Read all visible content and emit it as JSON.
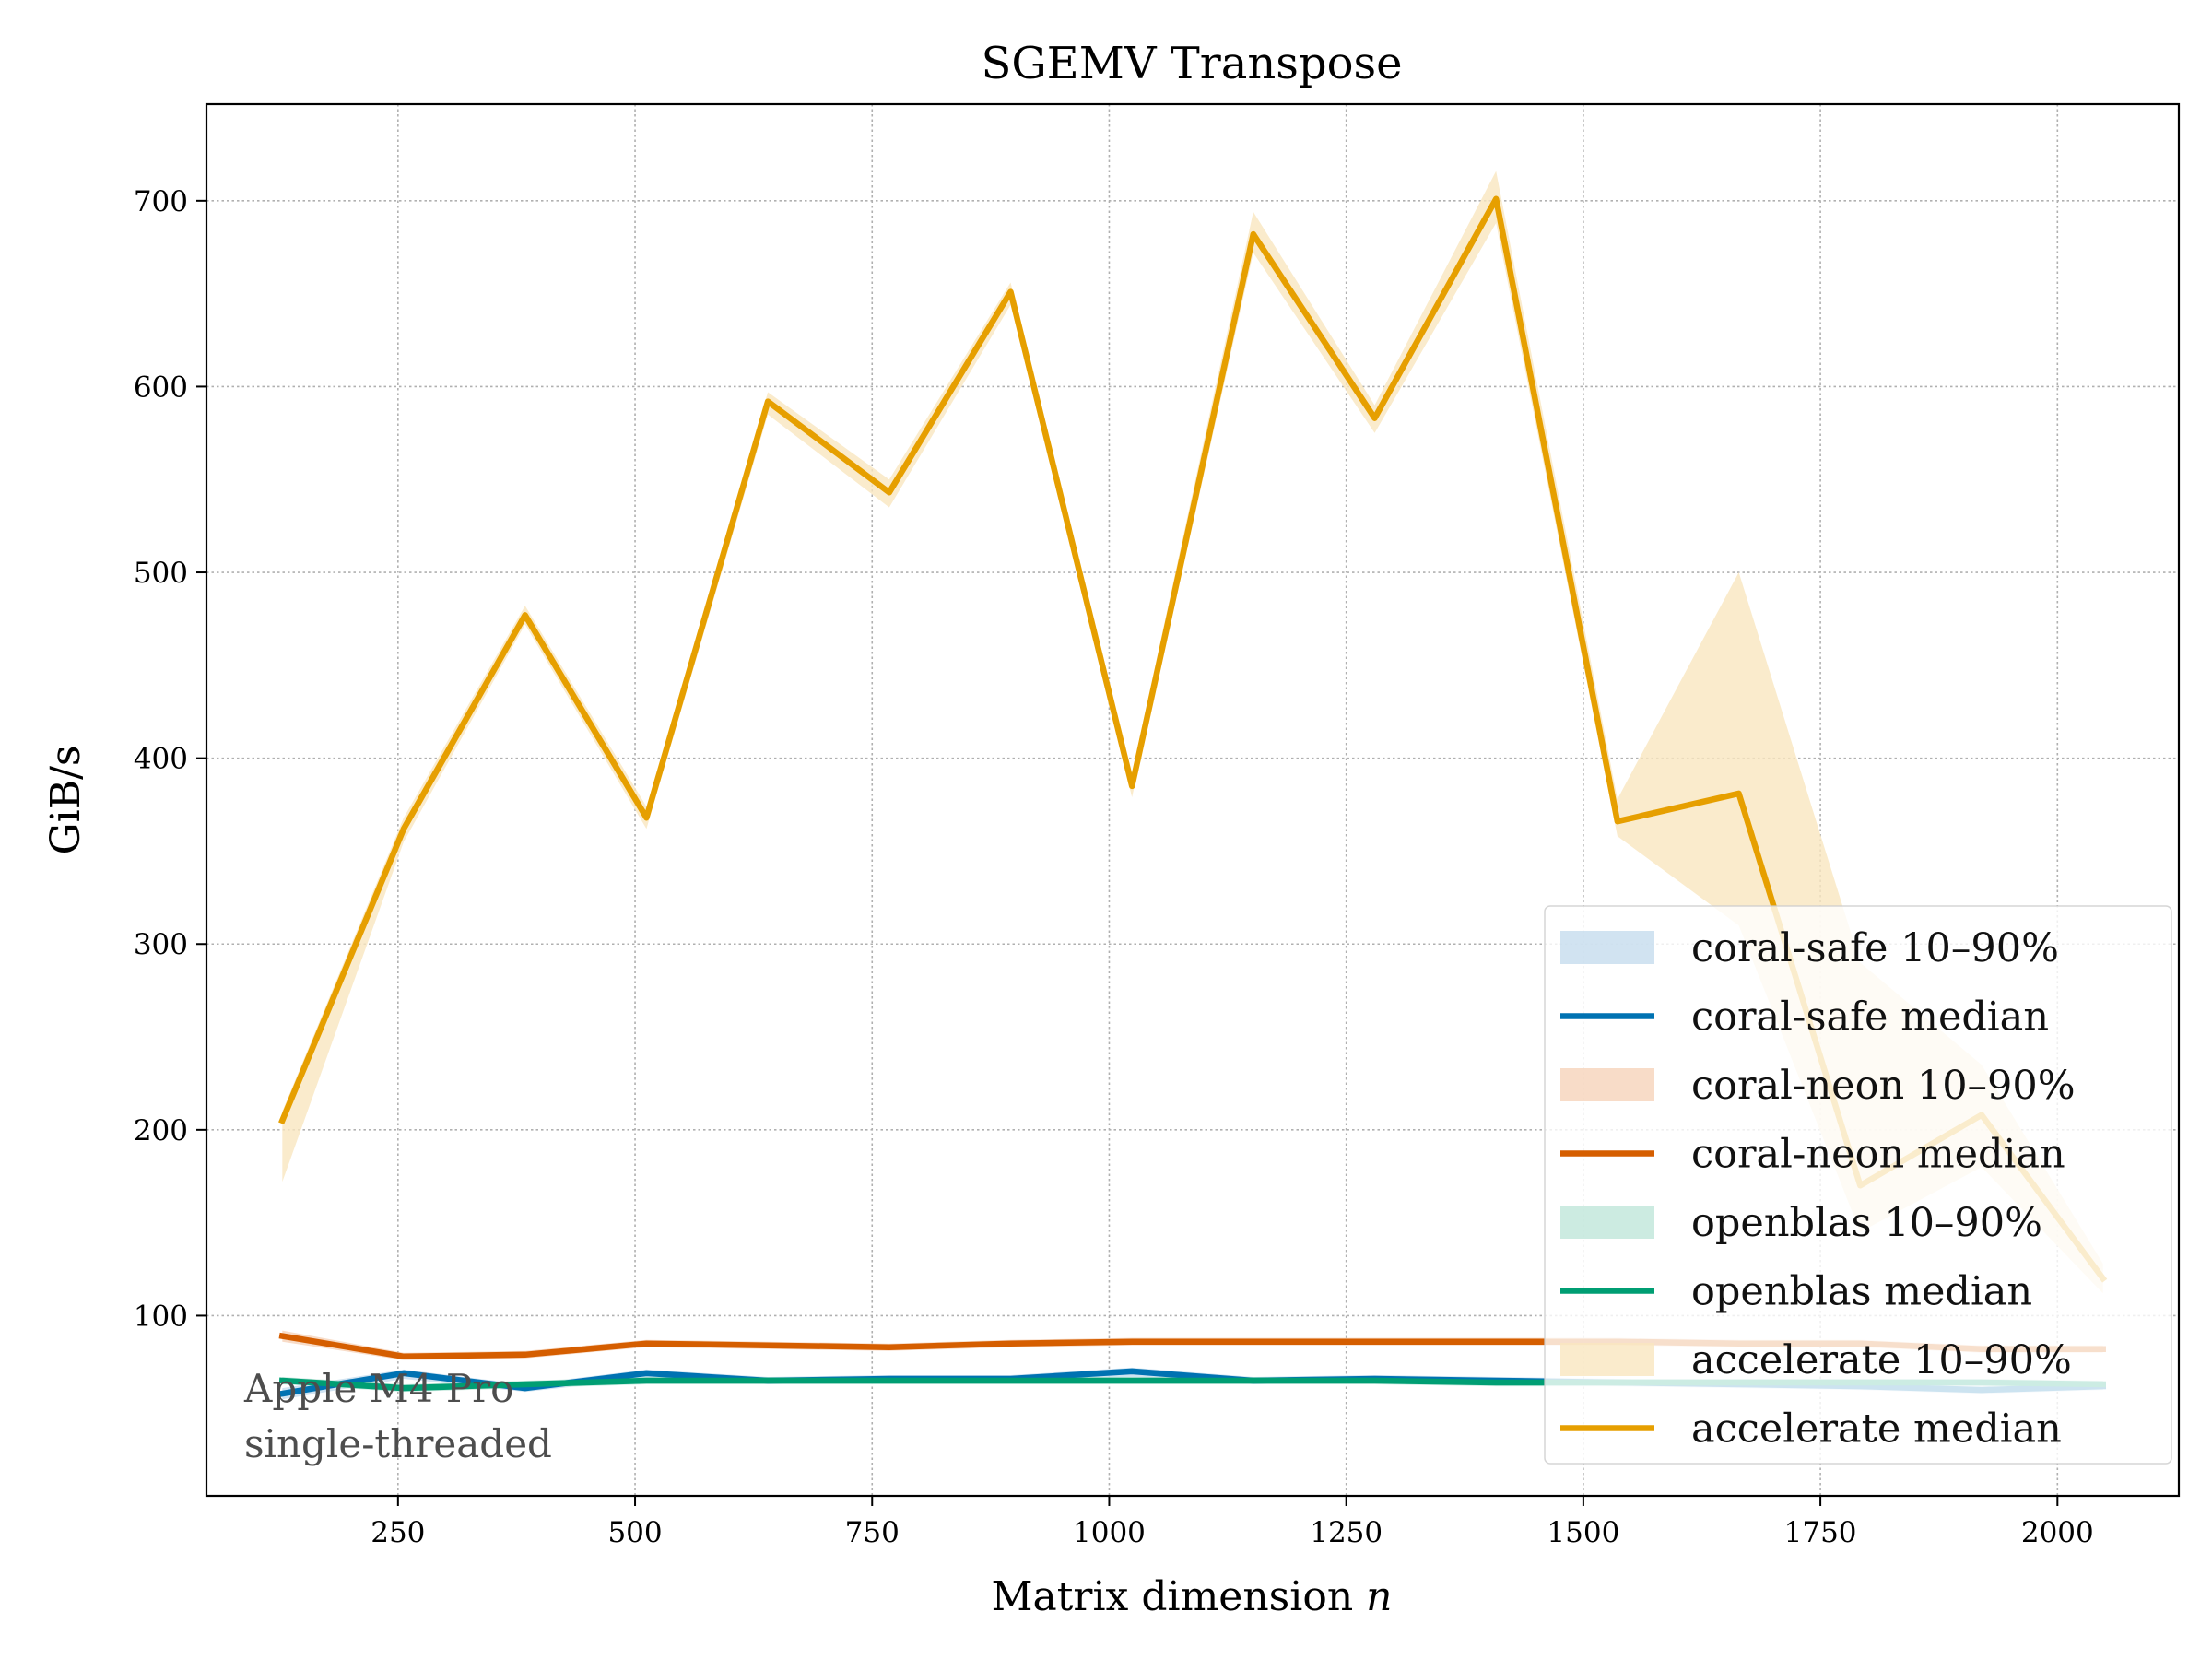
{
  "chart_data": {
    "type": "line",
    "title": "SGEMV Transpose",
    "xlabel": "Matrix dimension",
    "xlabel_var": "n",
    "ylabel": "GiB/s",
    "xlim": [
      48,
      2128
    ],
    "ylim": [
      3,
      752
    ],
    "xticks": [
      250,
      500,
      750,
      1000,
      1250,
      1500,
      1750,
      2000
    ],
    "yticks": [
      100,
      200,
      300,
      400,
      500,
      600,
      700
    ],
    "grid": true,
    "legend_position": "lower-right",
    "annotation": [
      "Apple M4 Pro",
      "single-threaded"
    ],
    "x": [
      128,
      256,
      384,
      512,
      640,
      768,
      896,
      1024,
      1152,
      1280,
      1408,
      1536,
      1664,
      1792,
      1920,
      2048
    ],
    "series": [
      {
        "name": "coral-safe median",
        "band_name": "coral-safe 10–90%",
        "color": "#0072b2",
        "band_color": "#c6dcee",
        "median": [
          58,
          69,
          61,
          69,
          65,
          66,
          66,
          70,
          65,
          66,
          65,
          64,
          63,
          62,
          60,
          62
        ],
        "p10": [
          55,
          66,
          59,
          66,
          63,
          64,
          64,
          67,
          63,
          64,
          63,
          62,
          61,
          60,
          58,
          60
        ],
        "p90": [
          61,
          71,
          63,
          71,
          67,
          68,
          68,
          72,
          67,
          68,
          67,
          66,
          65,
          64,
          62,
          64
        ]
      },
      {
        "name": "coral-neon median",
        "band_name": "coral-neon 10–90%",
        "color": "#d55e00",
        "band_color": "#f6d3ba",
        "median": [
          89,
          78,
          79,
          85,
          84,
          83,
          85,
          86,
          86,
          86,
          86,
          86,
          85,
          85,
          82,
          82
        ],
        "p10": [
          86,
          76,
          77,
          83,
          82,
          81,
          83,
          84,
          84,
          84,
          84,
          84,
          83,
          83,
          80,
          80
        ],
        "p90": [
          92,
          80,
          81,
          87,
          86,
          85,
          87,
          88,
          88,
          88,
          88,
          88,
          87,
          87,
          84,
          84
        ]
      },
      {
        "name": "openblas median",
        "band_name": "openblas 10–90%",
        "color": "#009e73",
        "band_color": "#bfe6da",
        "median": [
          65,
          61,
          63,
          65,
          65,
          65,
          65,
          65,
          65,
          65,
          64,
          64,
          64,
          64,
          64,
          63
        ],
        "p10": [
          63,
          59,
          61,
          63,
          63,
          63,
          63,
          63,
          63,
          63,
          62,
          62,
          62,
          62,
          62,
          61
        ],
        "p90": [
          67,
          63,
          65,
          67,
          67,
          67,
          67,
          67,
          67,
          67,
          66,
          66,
          66,
          66,
          66,
          65
        ]
      },
      {
        "name": "accelerate median",
        "band_name": "accelerate 10–90%",
        "color": "#e69f00",
        "band_color": "#f9e6bf",
        "median": [
          205,
          362,
          477,
          368,
          592,
          543,
          651,
          385,
          682,
          583,
          701,
          366,
          381,
          170,
          208,
          120
        ],
        "p10": [
          172,
          355,
          472,
          362,
          585,
          535,
          644,
          379,
          672,
          575,
          688,
          358,
          310,
          145,
          180,
          112
        ],
        "p90": [
          210,
          368,
          482,
          374,
          597,
          550,
          656,
          392,
          694,
          590,
          716,
          378,
          500,
          290,
          235,
          128
        ]
      }
    ]
  }
}
